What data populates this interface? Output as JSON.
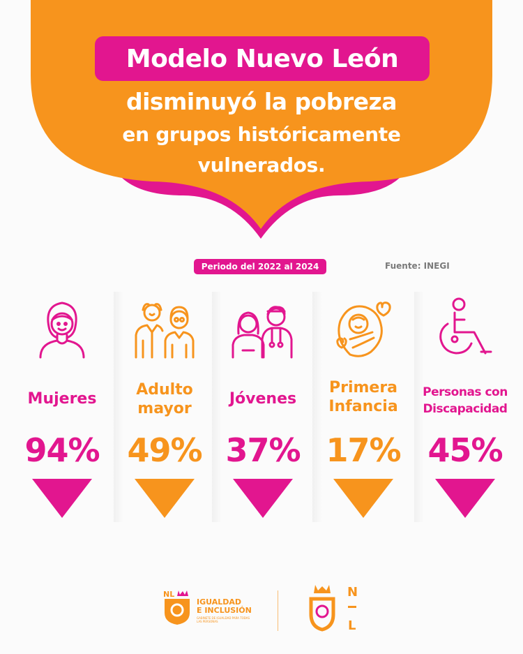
{
  "header": {
    "title": "Modelo Nuevo León",
    "subtitle_line1": "disminuyó la pobreza",
    "subtitle_line2": "en grupos históricamente",
    "subtitle_line3": "vulnerados."
  },
  "period": "Periodo del 2022 al 2024",
  "source": "Fuente: INEGI",
  "groups": [
    {
      "label_line1": "Mujeres",
      "label_line2": "",
      "value": "94%",
      "color": "#e2168f",
      "icon": "woman-icon"
    },
    {
      "label_line1": "Adulto",
      "label_line2": "mayor",
      "value": "49%",
      "color": "#f7941d",
      "icon": "elderly-couple-icon"
    },
    {
      "label_line1": "Jóvenes",
      "label_line2": "",
      "value": "37%",
      "color": "#e2168f",
      "icon": "young-people-icon"
    },
    {
      "label_line1": "Primera",
      "label_line2": "Infancia",
      "value": "17%",
      "color": "#f7941d",
      "icon": "baby-icon"
    },
    {
      "label_line1": "Personas con",
      "label_line2": "Discapacidad",
      "value": "45%",
      "color": "#e2168f",
      "icon": "wheelchair-icon"
    }
  ],
  "footer": {
    "logo_small_text": "NL",
    "brand_line1": "IGUALDAD",
    "brand_line2": "E INCLUSIÓN",
    "brand_tagline": "GABINETE DE IGUALDAD PARA TODAS LAS PERSONAS",
    "logo_right_n": "N",
    "logo_right_l": "L"
  },
  "colors": {
    "pink": "#e2168f",
    "orange": "#f7941d"
  }
}
